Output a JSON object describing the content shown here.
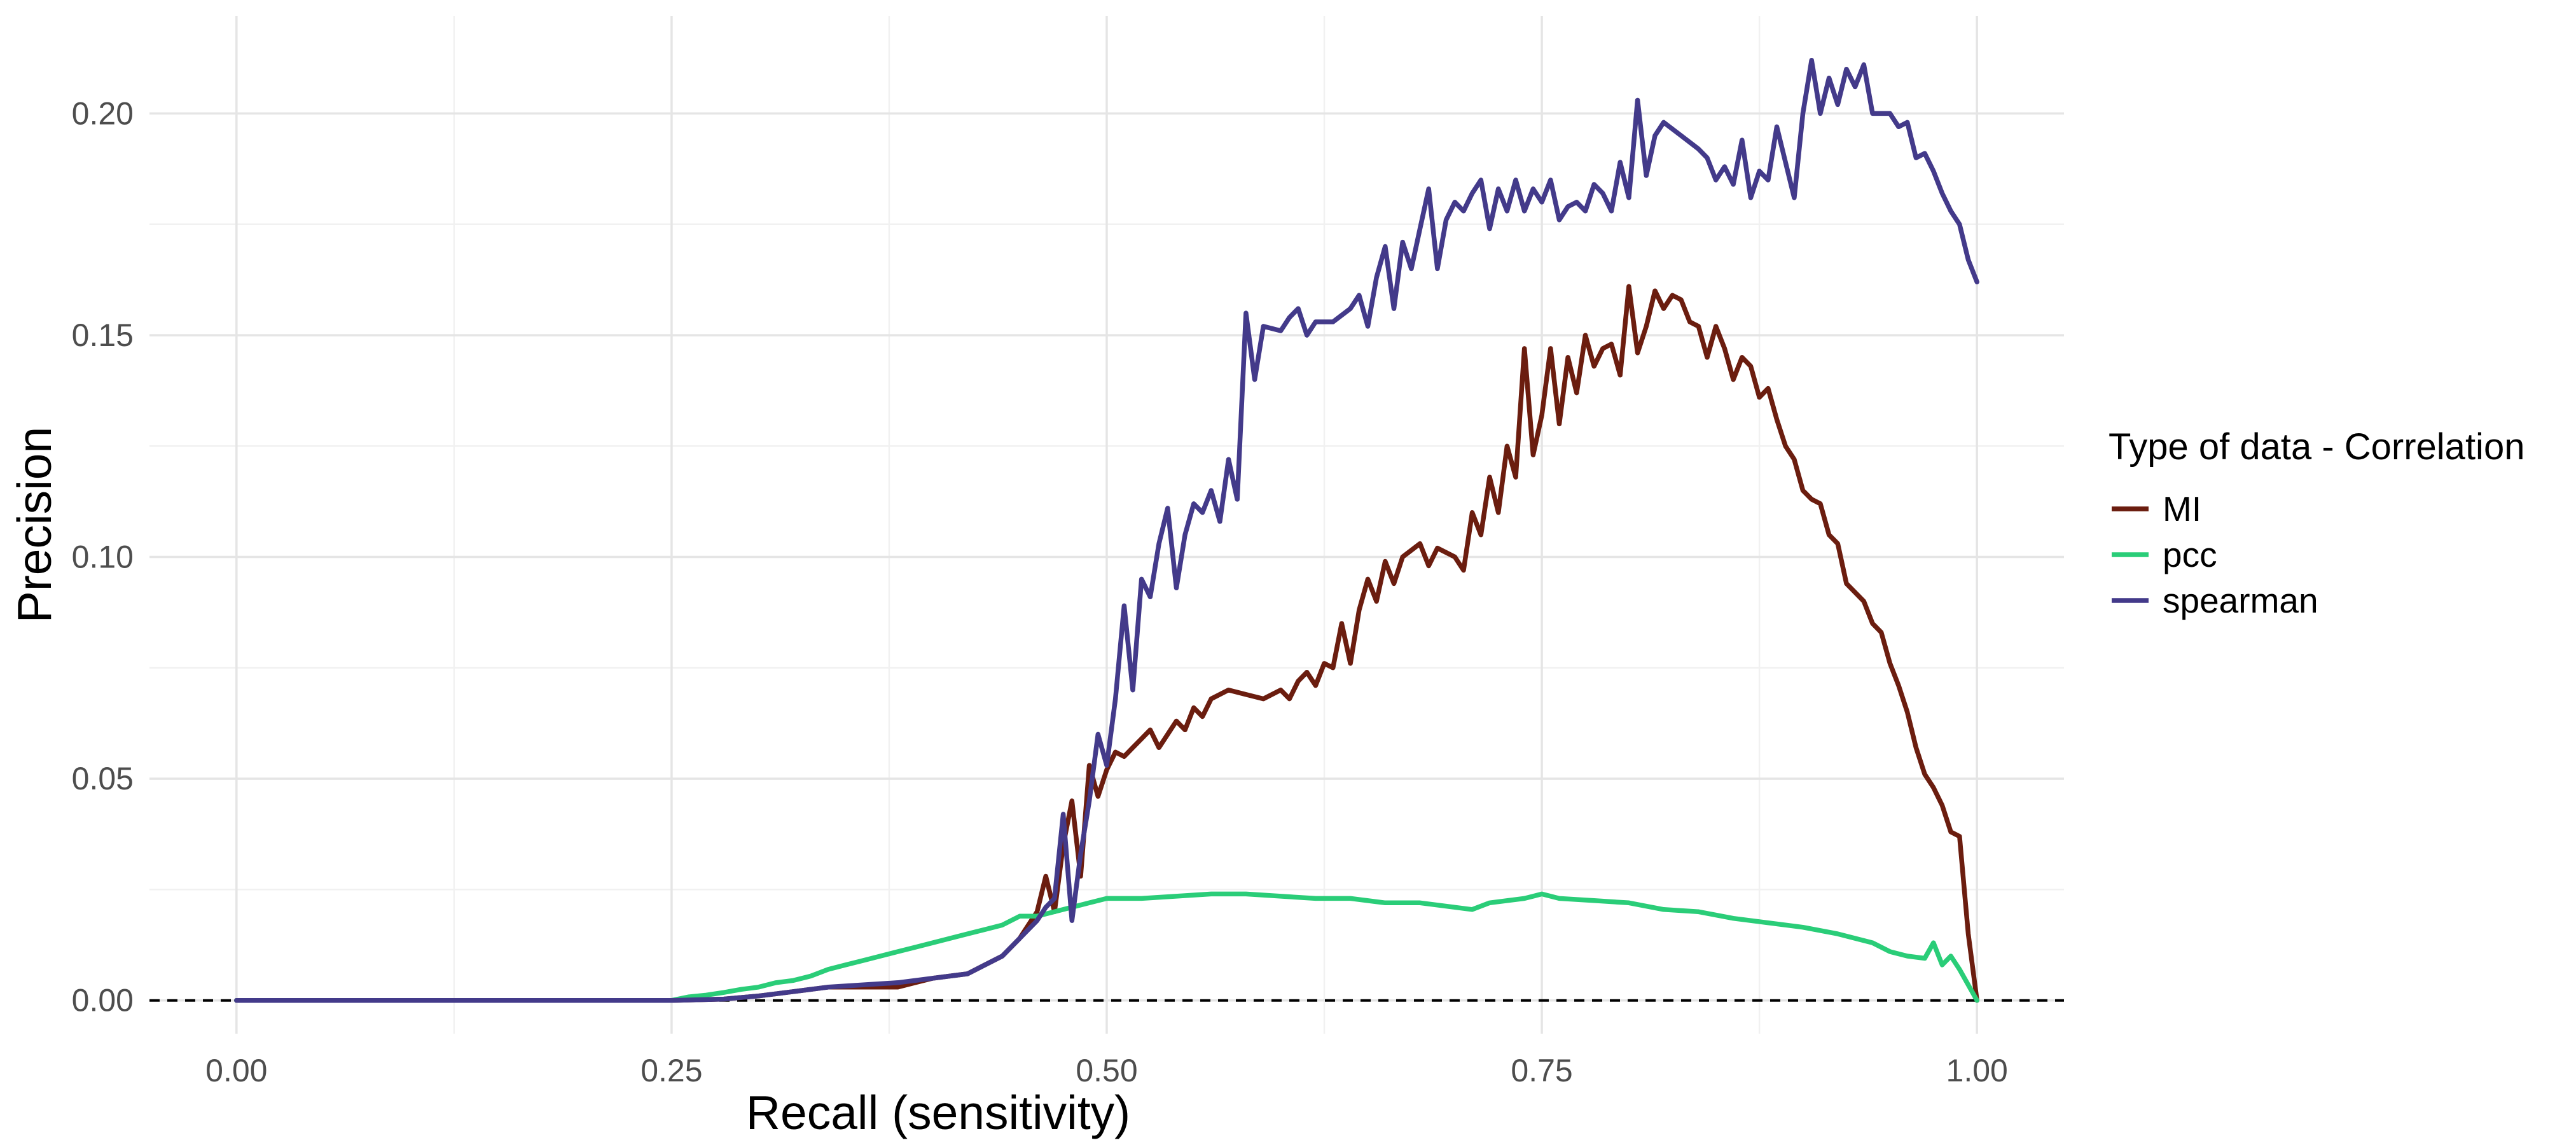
{
  "chart_data": {
    "type": "line",
    "title": "",
    "xlabel": "Recall (sensitivity)",
    "ylabel": "Precision",
    "xlim": [
      -0.05,
      1.05
    ],
    "ylim": [
      -0.0075,
      0.222
    ],
    "x_ticks": [
      0.0,
      0.25,
      0.5,
      0.75,
      1.0
    ],
    "x_tick_labels": [
      "0.00",
      "0.25",
      "0.50",
      "0.75",
      "1.00"
    ],
    "y_ticks": [
      0.0,
      0.05,
      0.1,
      0.15,
      0.2
    ],
    "y_tick_labels": [
      "0.00",
      "0.05",
      "0.10",
      "0.15",
      "0.20"
    ],
    "grid": true,
    "reference_line": {
      "y": 0.0,
      "style": "dashed",
      "color": "#000000"
    },
    "legend": {
      "title": "Type of data - Correlation",
      "position": "right"
    },
    "series": [
      {
        "name": "MI",
        "color": "#6b1d0f",
        "points": [
          [
            0.0,
            0.0
          ],
          [
            0.25,
            0.0
          ],
          [
            0.28,
            0.0003
          ],
          [
            0.3,
            0.001
          ],
          [
            0.31,
            0.0015
          ],
          [
            0.32,
            0.002
          ],
          [
            0.33,
            0.0025
          ],
          [
            0.34,
            0.003
          ],
          [
            0.36,
            0.003
          ],
          [
            0.38,
            0.003
          ],
          [
            0.39,
            0.004
          ],
          [
            0.4,
            0.005
          ],
          [
            0.41,
            0.0055
          ],
          [
            0.42,
            0.006
          ],
          [
            0.43,
            0.008
          ],
          [
            0.44,
            0.01
          ],
          [
            0.45,
            0.014
          ],
          [
            0.46,
            0.02
          ],
          [
            0.465,
            0.028
          ],
          [
            0.47,
            0.02
          ],
          [
            0.475,
            0.035
          ],
          [
            0.48,
            0.045
          ],
          [
            0.485,
            0.028
          ],
          [
            0.49,
            0.053
          ],
          [
            0.495,
            0.046
          ],
          [
            0.5,
            0.052
          ],
          [
            0.505,
            0.056
          ],
          [
            0.51,
            0.055
          ],
          [
            0.515,
            0.057
          ],
          [
            0.52,
            0.059
          ],
          [
            0.525,
            0.061
          ],
          [
            0.53,
            0.057
          ],
          [
            0.535,
            0.06
          ],
          [
            0.54,
            0.063
          ],
          [
            0.545,
            0.061
          ],
          [
            0.55,
            0.066
          ],
          [
            0.555,
            0.064
          ],
          [
            0.56,
            0.068
          ],
          [
            0.57,
            0.07
          ],
          [
            0.58,
            0.069
          ],
          [
            0.59,
            0.068
          ],
          [
            0.6,
            0.07
          ],
          [
            0.605,
            0.068
          ],
          [
            0.61,
            0.072
          ],
          [
            0.615,
            0.074
          ],
          [
            0.62,
            0.071
          ],
          [
            0.625,
            0.076
          ],
          [
            0.63,
            0.075
          ],
          [
            0.635,
            0.085
          ],
          [
            0.64,
            0.076
          ],
          [
            0.645,
            0.088
          ],
          [
            0.65,
            0.095
          ],
          [
            0.655,
            0.09
          ],
          [
            0.66,
            0.099
          ],
          [
            0.665,
            0.094
          ],
          [
            0.67,
            0.1
          ],
          [
            0.68,
            0.103
          ],
          [
            0.685,
            0.098
          ],
          [
            0.69,
            0.102
          ],
          [
            0.7,
            0.1
          ],
          [
            0.705,
            0.097
          ],
          [
            0.71,
            0.11
          ],
          [
            0.715,
            0.105
          ],
          [
            0.72,
            0.118
          ],
          [
            0.725,
            0.11
          ],
          [
            0.73,
            0.125
          ],
          [
            0.735,
            0.118
          ],
          [
            0.74,
            0.147
          ],
          [
            0.745,
            0.123
          ],
          [
            0.75,
            0.132
          ],
          [
            0.755,
            0.147
          ],
          [
            0.76,
            0.13
          ],
          [
            0.765,
            0.145
          ],
          [
            0.77,
            0.137
          ],
          [
            0.775,
            0.15
          ],
          [
            0.78,
            0.143
          ],
          [
            0.785,
            0.147
          ],
          [
            0.79,
            0.148
          ],
          [
            0.795,
            0.141
          ],
          [
            0.8,
            0.161
          ],
          [
            0.805,
            0.146
          ],
          [
            0.81,
            0.152
          ],
          [
            0.815,
            0.16
          ],
          [
            0.82,
            0.156
          ],
          [
            0.825,
            0.159
          ],
          [
            0.83,
            0.158
          ],
          [
            0.835,
            0.153
          ],
          [
            0.84,
            0.152
          ],
          [
            0.845,
            0.145
          ],
          [
            0.85,
            0.152
          ],
          [
            0.855,
            0.147
          ],
          [
            0.86,
            0.14
          ],
          [
            0.865,
            0.145
          ],
          [
            0.87,
            0.143
          ],
          [
            0.875,
            0.136
          ],
          [
            0.88,
            0.138
          ],
          [
            0.885,
            0.131
          ],
          [
            0.89,
            0.125
          ],
          [
            0.895,
            0.122
          ],
          [
            0.9,
            0.115
          ],
          [
            0.905,
            0.113
          ],
          [
            0.91,
            0.112
          ],
          [
            0.915,
            0.105
          ],
          [
            0.92,
            0.103
          ],
          [
            0.925,
            0.094
          ],
          [
            0.93,
            0.092
          ],
          [
            0.935,
            0.09
          ],
          [
            0.94,
            0.085
          ],
          [
            0.945,
            0.083
          ],
          [
            0.95,
            0.076
          ],
          [
            0.955,
            0.071
          ],
          [
            0.96,
            0.065
          ],
          [
            0.965,
            0.057
          ],
          [
            0.97,
            0.051
          ],
          [
            0.975,
            0.048
          ],
          [
            0.98,
            0.044
          ],
          [
            0.985,
            0.038
          ],
          [
            0.99,
            0.037
          ],
          [
            0.995,
            0.015
          ],
          [
            1.0,
            0.0
          ]
        ]
      },
      {
        "name": "pcc",
        "color": "#2acd78",
        "points": [
          [
            0.0,
            0.0
          ],
          [
            0.25,
            0.0
          ],
          [
            0.26,
            0.0008
          ],
          [
            0.27,
            0.0012
          ],
          [
            0.28,
            0.0018
          ],
          [
            0.29,
            0.0025
          ],
          [
            0.3,
            0.003
          ],
          [
            0.31,
            0.004
          ],
          [
            0.32,
            0.0045
          ],
          [
            0.33,
            0.0055
          ],
          [
            0.34,
            0.007
          ],
          [
            0.35,
            0.008
          ],
          [
            0.36,
            0.009
          ],
          [
            0.37,
            0.01
          ],
          [
            0.38,
            0.011
          ],
          [
            0.39,
            0.012
          ],
          [
            0.4,
            0.013
          ],
          [
            0.41,
            0.014
          ],
          [
            0.42,
            0.015
          ],
          [
            0.43,
            0.016
          ],
          [
            0.44,
            0.017
          ],
          [
            0.45,
            0.019
          ],
          [
            0.46,
            0.019
          ],
          [
            0.47,
            0.02
          ],
          [
            0.48,
            0.021
          ],
          [
            0.49,
            0.022
          ],
          [
            0.5,
            0.023
          ],
          [
            0.52,
            0.023
          ],
          [
            0.54,
            0.0235
          ],
          [
            0.56,
            0.024
          ],
          [
            0.58,
            0.024
          ],
          [
            0.6,
            0.0235
          ],
          [
            0.62,
            0.023
          ],
          [
            0.64,
            0.023
          ],
          [
            0.66,
            0.022
          ],
          [
            0.68,
            0.022
          ],
          [
            0.7,
            0.021
          ],
          [
            0.71,
            0.0205
          ],
          [
            0.72,
            0.022
          ],
          [
            0.74,
            0.023
          ],
          [
            0.75,
            0.024
          ],
          [
            0.76,
            0.023
          ],
          [
            0.78,
            0.0225
          ],
          [
            0.8,
            0.022
          ],
          [
            0.82,
            0.0205
          ],
          [
            0.84,
            0.02
          ],
          [
            0.86,
            0.0185
          ],
          [
            0.88,
            0.0175
          ],
          [
            0.89,
            0.017
          ],
          [
            0.9,
            0.0165
          ],
          [
            0.92,
            0.015
          ],
          [
            0.94,
            0.013
          ],
          [
            0.95,
            0.011
          ],
          [
            0.96,
            0.01
          ],
          [
            0.97,
            0.0095
          ],
          [
            0.975,
            0.013
          ],
          [
            0.98,
            0.008
          ],
          [
            0.985,
            0.01
          ],
          [
            0.99,
            0.007
          ],
          [
            1.0,
            0.0
          ]
        ]
      },
      {
        "name": "spearman",
        "color": "#433a8a",
        "points": [
          [
            0.0,
            0.0
          ],
          [
            0.25,
            0.0
          ],
          [
            0.28,
            0.0003
          ],
          [
            0.3,
            0.001
          ],
          [
            0.32,
            0.002
          ],
          [
            0.34,
            0.003
          ],
          [
            0.36,
            0.0035
          ],
          [
            0.38,
            0.004
          ],
          [
            0.4,
            0.005
          ],
          [
            0.42,
            0.006
          ],
          [
            0.43,
            0.008
          ],
          [
            0.44,
            0.01
          ],
          [
            0.45,
            0.014
          ],
          [
            0.46,
            0.018
          ],
          [
            0.465,
            0.021
          ],
          [
            0.47,
            0.023
          ],
          [
            0.475,
            0.042
          ],
          [
            0.48,
            0.018
          ],
          [
            0.485,
            0.033
          ],
          [
            0.49,
            0.045
          ],
          [
            0.495,
            0.06
          ],
          [
            0.5,
            0.053
          ],
          [
            0.505,
            0.068
          ],
          [
            0.51,
            0.089
          ],
          [
            0.515,
            0.07
          ],
          [
            0.52,
            0.095
          ],
          [
            0.525,
            0.091
          ],
          [
            0.53,
            0.103
          ],
          [
            0.535,
            0.111
          ],
          [
            0.54,
            0.093
          ],
          [
            0.545,
            0.105
          ],
          [
            0.55,
            0.112
          ],
          [
            0.555,
            0.11
          ],
          [
            0.56,
            0.115
          ],
          [
            0.565,
            0.108
          ],
          [
            0.57,
            0.122
          ],
          [
            0.575,
            0.113
          ],
          [
            0.58,
            0.155
          ],
          [
            0.585,
            0.14
          ],
          [
            0.59,
            0.152
          ],
          [
            0.6,
            0.151
          ],
          [
            0.605,
            0.154
          ],
          [
            0.61,
            0.156
          ],
          [
            0.615,
            0.15
          ],
          [
            0.62,
            0.153
          ],
          [
            0.63,
            0.153
          ],
          [
            0.64,
            0.156
          ],
          [
            0.645,
            0.159
          ],
          [
            0.65,
            0.152
          ],
          [
            0.655,
            0.163
          ],
          [
            0.66,
            0.17
          ],
          [
            0.665,
            0.156
          ],
          [
            0.67,
            0.171
          ],
          [
            0.675,
            0.165
          ],
          [
            0.68,
            0.174
          ],
          [
            0.685,
            0.183
          ],
          [
            0.69,
            0.165
          ],
          [
            0.695,
            0.176
          ],
          [
            0.7,
            0.18
          ],
          [
            0.705,
            0.178
          ],
          [
            0.71,
            0.182
          ],
          [
            0.715,
            0.185
          ],
          [
            0.72,
            0.174
          ],
          [
            0.725,
            0.183
          ],
          [
            0.73,
            0.178
          ],
          [
            0.735,
            0.185
          ],
          [
            0.74,
            0.178
          ],
          [
            0.745,
            0.183
          ],
          [
            0.75,
            0.18
          ],
          [
            0.755,
            0.185
          ],
          [
            0.76,
            0.176
          ],
          [
            0.765,
            0.179
          ],
          [
            0.77,
            0.18
          ],
          [
            0.775,
            0.178
          ],
          [
            0.78,
            0.184
          ],
          [
            0.785,
            0.182
          ],
          [
            0.79,
            0.178
          ],
          [
            0.795,
            0.189
          ],
          [
            0.8,
            0.181
          ],
          [
            0.805,
            0.203
          ],
          [
            0.81,
            0.186
          ],
          [
            0.815,
            0.195
          ],
          [
            0.82,
            0.198
          ],
          [
            0.83,
            0.195
          ],
          [
            0.84,
            0.192
          ],
          [
            0.845,
            0.19
          ],
          [
            0.85,
            0.185
          ],
          [
            0.855,
            0.188
          ],
          [
            0.86,
            0.184
          ],
          [
            0.865,
            0.194
          ],
          [
            0.87,
            0.181
          ],
          [
            0.875,
            0.187
          ],
          [
            0.88,
            0.185
          ],
          [
            0.885,
            0.197
          ],
          [
            0.89,
            0.189
          ],
          [
            0.895,
            0.181
          ],
          [
            0.9,
            0.2
          ],
          [
            0.905,
            0.212
          ],
          [
            0.91,
            0.2
          ],
          [
            0.915,
            0.208
          ],
          [
            0.92,
            0.202
          ],
          [
            0.925,
            0.21
          ],
          [
            0.93,
            0.206
          ],
          [
            0.935,
            0.211
          ],
          [
            0.94,
            0.2
          ],
          [
            0.95,
            0.2
          ],
          [
            0.955,
            0.197
          ],
          [
            0.96,
            0.198
          ],
          [
            0.965,
            0.19
          ],
          [
            0.97,
            0.191
          ],
          [
            0.975,
            0.187
          ],
          [
            0.98,
            0.182
          ],
          [
            0.985,
            0.178
          ],
          [
            0.99,
            0.175
          ],
          [
            0.995,
            0.167
          ],
          [
            1.0,
            0.162
          ]
        ]
      }
    ]
  }
}
